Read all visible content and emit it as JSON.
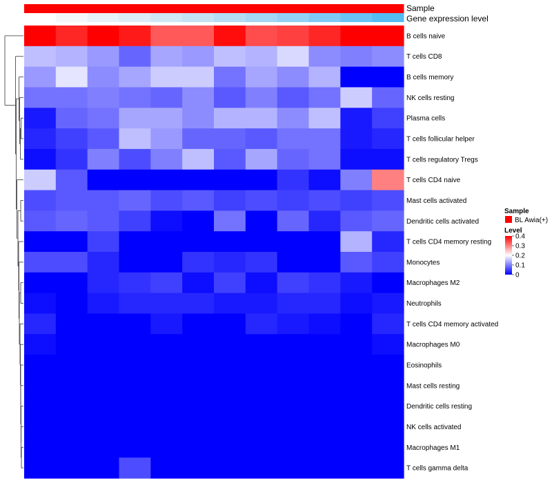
{
  "chart_data": {
    "type": "heatmap",
    "annotation_titles": [
      "Sample",
      "Gene expression level"
    ],
    "rows": [
      "B cells naive",
      "T cells CD8",
      "B cells memory",
      "NK cells resting",
      "Plasma cells",
      "T cells follicular helper",
      "T cells regulatory  Tregs",
      "T cells CD4 naive",
      "Mast cells activated",
      "Dendritic cells activated",
      "T cells CD4 memory resting",
      "Monocytes",
      "Macrophages M2",
      "Neutrophils",
      "T cells CD4 memory activated",
      "Macrophages M0",
      "Eosinophils",
      "Mast cells resting",
      "Dendritic cells resting",
      "NK cells activated",
      "Macrophages M1",
      "T cells gamma delta"
    ],
    "n_columns": 12,
    "values": [
      [
        0.4,
        0.37,
        0.4,
        0.38,
        0.33,
        0.33,
        0.39,
        0.34,
        0.35,
        0.37,
        0.4,
        0.4
      ],
      [
        0.15,
        0.14,
        0.12,
        0.08,
        0.13,
        0.12,
        0.15,
        0.14,
        0.17,
        0.11,
        0.1,
        0.11
      ],
      [
        0.12,
        0.18,
        0.11,
        0.13,
        0.16,
        0.16,
        0.09,
        0.13,
        0.11,
        0.14,
        0.0,
        0.0
      ],
      [
        0.09,
        0.09,
        0.1,
        0.09,
        0.08,
        0.11,
        0.07,
        0.1,
        0.07,
        0.09,
        0.16,
        0.08
      ],
      [
        0.02,
        0.08,
        0.09,
        0.13,
        0.13,
        0.11,
        0.14,
        0.14,
        0.11,
        0.15,
        0.02,
        0.05
      ],
      [
        0.03,
        0.05,
        0.07,
        0.15,
        0.12,
        0.08,
        0.08,
        0.07,
        0.09,
        0.09,
        0.02,
        0.03
      ],
      [
        0.01,
        0.04,
        0.1,
        0.06,
        0.1,
        0.15,
        0.07,
        0.13,
        0.08,
        0.09,
        0.01,
        0.01
      ],
      [
        0.16,
        0.07,
        0.0,
        0.0,
        0.0,
        0.0,
        0.0,
        0.0,
        0.04,
        0.01,
        0.1,
        0.3
      ],
      [
        0.06,
        0.07,
        0.07,
        0.08,
        0.06,
        0.07,
        0.05,
        0.06,
        0.05,
        0.06,
        0.05,
        0.06
      ],
      [
        0.07,
        0.08,
        0.07,
        0.05,
        0.01,
        0.0,
        0.09,
        0.0,
        0.08,
        0.03,
        0.07,
        0.08
      ],
      [
        0.0,
        0.0,
        0.05,
        0.0,
        0.0,
        0.0,
        0.0,
        0.0,
        0.0,
        0.0,
        0.14,
        0.03
      ],
      [
        0.06,
        0.06,
        0.03,
        0.0,
        0.0,
        0.04,
        0.03,
        0.04,
        0.0,
        0.0,
        0.07,
        0.05
      ],
      [
        0.0,
        0.0,
        0.03,
        0.04,
        0.05,
        0.01,
        0.05,
        0.01,
        0.05,
        0.04,
        0.02,
        0.0
      ],
      [
        0.01,
        0.0,
        0.02,
        0.03,
        0.03,
        0.03,
        0.02,
        0.02,
        0.03,
        0.03,
        0.01,
        0.02
      ],
      [
        0.03,
        0.0,
        0.0,
        0.0,
        0.02,
        0.0,
        0.0,
        0.03,
        0.02,
        0.01,
        0.0,
        0.03
      ],
      [
        0.01,
        0.0,
        0.0,
        0.0,
        0.0,
        0.0,
        0.0,
        0.0,
        0.0,
        0.0,
        0.0,
        0.01
      ],
      [
        0.0,
        0.0,
        0.0,
        0.0,
        0.0,
        0.0,
        0.0,
        0.0,
        0.0,
        0.0,
        0.0,
        0.0
      ],
      [
        0.0,
        0.0,
        0.0,
        0.0,
        0.0,
        0.0,
        0.0,
        0.0,
        0.0,
        0.0,
        0.0,
        0.0
      ],
      [
        0.0,
        0.0,
        0.0,
        0.0,
        0.0,
        0.0,
        0.0,
        0.0,
        0.0,
        0.0,
        0.0,
        0.0
      ],
      [
        0.0,
        0.0,
        0.0,
        0.0,
        0.0,
        0.0,
        0.0,
        0.0,
        0.0,
        0.0,
        0.0,
        0.0
      ],
      [
        0.0,
        0.0,
        0.0,
        0.0,
        0.0,
        0.0,
        0.0,
        0.0,
        0.0,
        0.0,
        0.0,
        0.0
      ],
      [
        0.0,
        0.0,
        0.0,
        0.06,
        0.0,
        0.0,
        0.0,
        0.0,
        0.0,
        0.0,
        0.0,
        0.0
      ]
    ],
    "sample_annotation": {
      "color": "#ff0000",
      "legend_label": "BL Awia(+)"
    },
    "gene_expression_annotation": {
      "colors": [
        "#ffffff",
        "#f4f8fb",
        "#e8f2f9",
        "#dcedf7",
        "#d0e8f6",
        "#c3e3f5",
        "#b4ddf5",
        "#a4d7f5",
        "#92d1f5",
        "#7ecaf5",
        "#69c3f4",
        "#55bcf3"
      ]
    },
    "legend": {
      "sample_title": "Sample",
      "level_title": "Level",
      "level_ticks": [
        "0.4",
        "0.3",
        "0.2",
        "0.1",
        "0"
      ],
      "level_range": [
        0,
        0.4
      ]
    },
    "color_scale": {
      "low": "#0000ff",
      "mid": "#ffffff",
      "high": "#ff0000",
      "mid_value": 0.2
    }
  }
}
